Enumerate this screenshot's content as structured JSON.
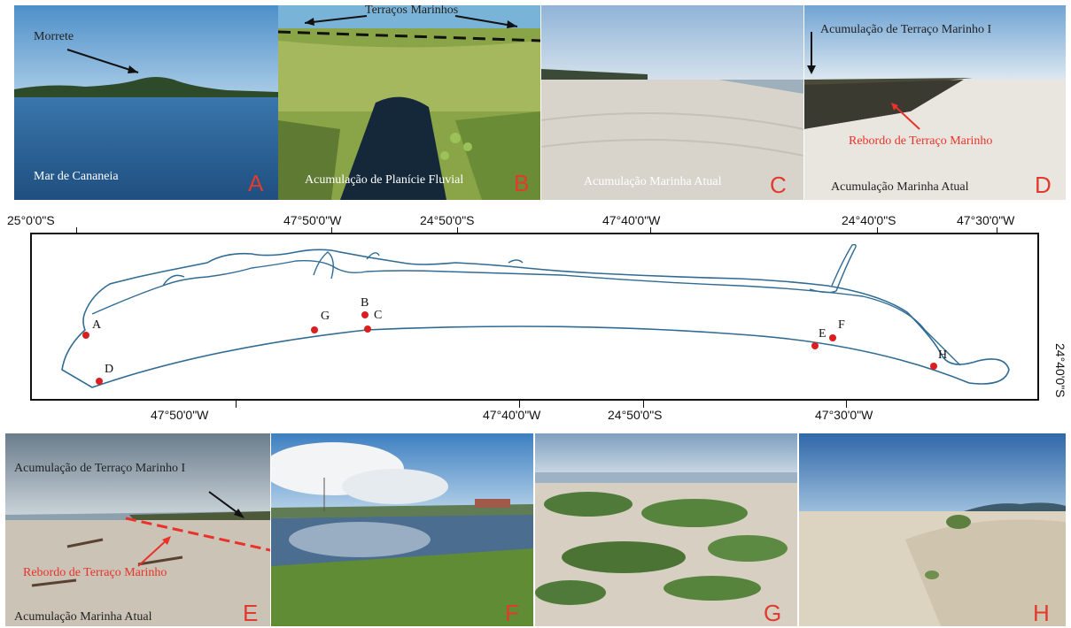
{
  "photos": [
    {
      "id": "A",
      "captions": [
        "Morrete",
        "Mar de Cananeia"
      ]
    },
    {
      "id": "B",
      "captions": [
        "Terraços Marinhos",
        "Acumulação de Planície Fluvial"
      ]
    },
    {
      "id": "C",
      "captions": [
        "Acumulação Marinha Atual"
      ]
    },
    {
      "id": "D",
      "captions": [
        "Acumulação de Terraço Marinho I",
        "Rebordo de Terraço Marinho",
        "Acumulação Marinha Atual"
      ]
    },
    {
      "id": "E",
      "captions": [
        "Acumulação de Terraço Marinho I",
        "Rebordo de Terraço Marinho",
        "Acumulação Marinha Atual"
      ]
    },
    {
      "id": "F",
      "captions": []
    },
    {
      "id": "G",
      "captions": []
    },
    {
      "id": "H",
      "captions": []
    }
  ],
  "map": {
    "top_coords": [
      "25°0'0\"S",
      "47°50'0\"W",
      "24°50'0\"S",
      "47°40'0\"W",
      "24°40'0\"S",
      "47°30'0\"W"
    ],
    "bottom_coords": [
      "47°50'0\"W",
      "47°40'0\"W",
      "24°50'0\"S",
      "47°30'0\"W"
    ],
    "right_coord": "24°40'0\"S",
    "points": [
      "A",
      "B",
      "C",
      "D",
      "E",
      "F",
      "G",
      "H"
    ]
  },
  "colors": {
    "coastline": "#2f6b93",
    "point": "#d91f1f",
    "label_red": "#e23a2e"
  }
}
